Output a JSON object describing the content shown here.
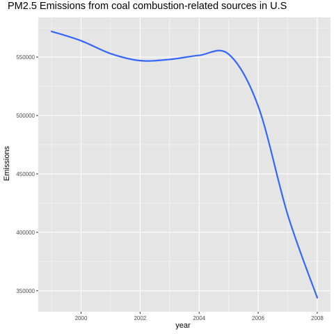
{
  "chart_data": {
    "type": "line",
    "title": "PM2.5 Emissions from coal combustion-related sources in U.S",
    "xlabel": "year",
    "ylabel": "Emissions",
    "xlim": [
      1998.55,
      2008.45
    ],
    "ylim": [
      332000,
      584000
    ],
    "x_ticks": [
      2000,
      2002,
      2004,
      2006,
      2008
    ],
    "x_tick_labels": [
      "2000",
      "2002",
      "2004",
      "2006",
      "2008"
    ],
    "y_ticks": [
      350000,
      400000,
      450000,
      500000,
      550000
    ],
    "y_tick_labels": [
      "350000",
      "400000",
      "450000",
      "500000",
      "550000"
    ],
    "grid": true,
    "series": [
      {
        "style": "smoothed line",
        "color": "#3366FF",
        "x": [
          1999,
          2000,
          2001,
          2002,
          2003,
          2004,
          2005,
          2006,
          2007,
          2008
        ],
        "y": [
          572000,
          564000,
          553000,
          547000,
          548000,
          551500,
          552500,
          508000,
          415000,
          344000
        ]
      }
    ]
  },
  "colors": {
    "panel_background": "#E5E5E5",
    "grid_major": "#FFFFFF",
    "line": "#3366FF"
  }
}
